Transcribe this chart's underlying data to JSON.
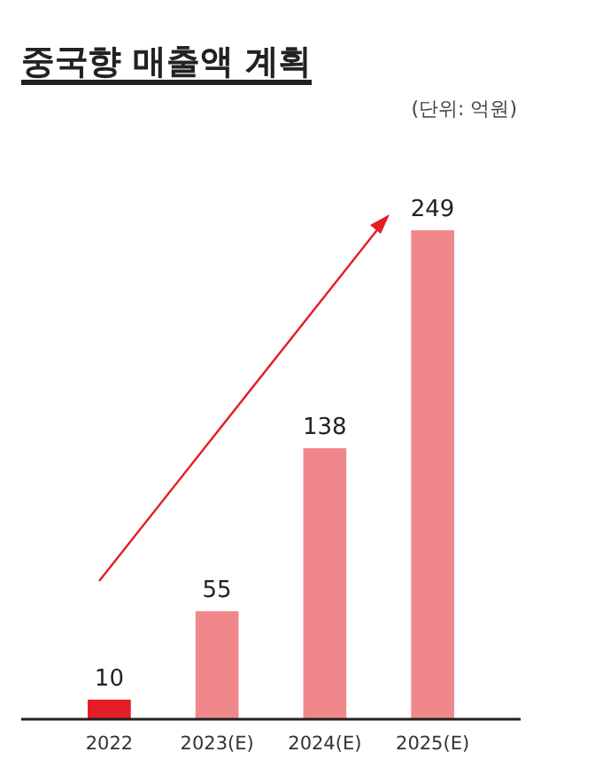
{
  "chart_data": {
    "type": "bar",
    "title": "중국향 매출액 계획",
    "annotations": [
      "(단위: 억원)"
    ],
    "categories": [
      "2022",
      "2023(E)",
      "2024(E)",
      "2025(E)"
    ],
    "values": [
      10,
      55,
      138,
      249
    ],
    "colors": [
      "#e31e24",
      "#f0888b",
      "#f0888b",
      "#f0888b"
    ],
    "data_labels": true
  }
}
